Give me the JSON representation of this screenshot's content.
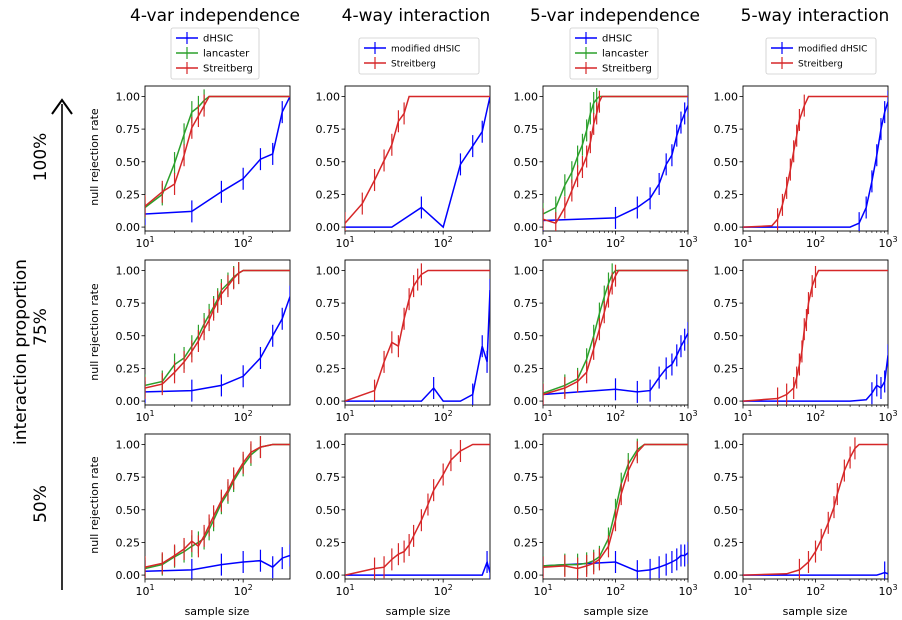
{
  "figure": {
    "column_titles": [
      "4-var independence",
      "4-way interaction",
      "5-var independence",
      "5-way interaction"
    ],
    "row_labels": [
      "100%",
      "75%",
      "50%"
    ],
    "side_label": "interaction proportion",
    "ylabel": "null rejection rate",
    "xlabel": "sample size"
  },
  "colors": {
    "dHSIC": "#0000ff",
    "lancaster": "#2ca02c",
    "Streitberg": "#d62728",
    "modified dHSIC": "#0000ff"
  },
  "chart_data": [
    {
      "type": "line",
      "panel": "4-var independence / 100%",
      "xscale": "log",
      "xlim": [
        10,
        300
      ],
      "ylim": [
        -0.03,
        1.08
      ],
      "series": [
        {
          "name": "dHSIC",
          "x": [
            10,
            30,
            60,
            100,
            150,
            200,
            250,
            300
          ],
          "y": [
            0.1,
            0.12,
            0.27,
            0.37,
            0.52,
            0.56,
            0.88,
            1.0
          ]
        },
        {
          "name": "lancaster",
          "x": [
            10,
            15,
            20,
            25,
            30,
            35,
            40,
            45,
            50,
            300
          ],
          "y": [
            0.15,
            0.25,
            0.49,
            0.71,
            0.88,
            0.92,
            0.97,
            1.0,
            1.0,
            1.0
          ]
        },
        {
          "name": "Streitberg",
          "x": [
            10,
            15,
            20,
            25,
            30,
            35,
            40,
            45,
            50,
            300
          ],
          "y": [
            0.16,
            0.27,
            0.33,
            0.55,
            0.76,
            0.85,
            0.93,
            1.0,
            1.0,
            1.0
          ]
        }
      ]
    },
    {
      "type": "line",
      "panel": "4-way interaction / 100%",
      "xscale": "log",
      "xlim": [
        10,
        300
      ],
      "ylim": [
        -0.03,
        1.08
      ],
      "series": [
        {
          "name": "modified dHSIC",
          "x": [
            10,
            30,
            60,
            100,
            150,
            200,
            250,
            300
          ],
          "y": [
            0.0,
            0.0,
            0.15,
            0.0,
            0.48,
            0.62,
            0.73,
            1.0
          ]
        },
        {
          "name": "Streitberg",
          "x": [
            10,
            15,
            20,
            25,
            30,
            35,
            40,
            45,
            50,
            300
          ],
          "y": [
            0.03,
            0.18,
            0.36,
            0.51,
            0.63,
            0.81,
            0.87,
            1.0,
            1.0,
            1.0
          ]
        }
      ]
    },
    {
      "type": "line",
      "panel": "5-var independence / 100%",
      "xscale": "log",
      "xlim": [
        10,
        1000
      ],
      "ylim": [
        -0.03,
        1.08
      ],
      "series": [
        {
          "name": "dHSIC",
          "x": [
            10,
            100,
            200,
            300,
            400,
            500,
            600,
            700,
            800,
            900,
            1000
          ],
          "y": [
            0.05,
            0.07,
            0.15,
            0.22,
            0.33,
            0.48,
            0.55,
            0.7,
            0.8,
            0.87,
            0.93
          ]
        },
        {
          "name": "lancaster",
          "x": [
            10,
            15,
            20,
            25,
            30,
            35,
            40,
            45,
            50,
            55,
            60,
            1000
          ],
          "y": [
            0.1,
            0.15,
            0.32,
            0.42,
            0.54,
            0.63,
            0.74,
            0.87,
            0.95,
            0.98,
            1.0,
            1.0
          ]
        },
        {
          "name": "Streitberg",
          "x": [
            10,
            15,
            20,
            25,
            30,
            35,
            40,
            45,
            50,
            55,
            60,
            65,
            70,
            1000
          ],
          "y": [
            0.06,
            0.03,
            0.15,
            0.28,
            0.39,
            0.46,
            0.54,
            0.65,
            0.79,
            0.87,
            0.96,
            1.0,
            1.0,
            1.0
          ]
        }
      ]
    },
    {
      "type": "line",
      "panel": "5-way interaction / 100%",
      "xscale": "log",
      "xlim": [
        10,
        1000
      ],
      "ylim": [
        -0.03,
        1.08
      ],
      "series": [
        {
          "name": "modified dHSIC",
          "x": [
            10,
            300,
            400,
            500,
            600,
            700,
            800,
            900,
            1000
          ],
          "y": [
            0.0,
            0.0,
            0.03,
            0.15,
            0.35,
            0.55,
            0.75,
            0.88,
            0.96
          ]
        },
        {
          "name": "Streitberg",
          "x": [
            10,
            25,
            30,
            35,
            40,
            45,
            50,
            55,
            60,
            70,
            80,
            1000
          ],
          "y": [
            0.0,
            0.01,
            0.06,
            0.17,
            0.3,
            0.44,
            0.58,
            0.7,
            0.82,
            0.93,
            1.0,
            1.0
          ]
        }
      ]
    },
    {
      "type": "line",
      "panel": "4-var independence / 75%",
      "xscale": "log",
      "xlim": [
        10,
        300
      ],
      "ylim": [
        -0.03,
        1.08
      ],
      "series": [
        {
          "name": "dHSIC",
          "x": [
            10,
            30,
            60,
            100,
            150,
            200,
            250,
            300
          ],
          "y": [
            0.07,
            0.08,
            0.12,
            0.19,
            0.33,
            0.5,
            0.63,
            0.8
          ]
        },
        {
          "name": "lancaster",
          "x": [
            10,
            15,
            20,
            25,
            30,
            35,
            40,
            45,
            50,
            55,
            60,
            70,
            80,
            90,
            100,
            300
          ],
          "y": [
            0.12,
            0.15,
            0.28,
            0.33,
            0.42,
            0.5,
            0.59,
            0.66,
            0.72,
            0.78,
            0.85,
            0.9,
            0.95,
            0.98,
            1.0,
            1.0
          ]
        },
        {
          "name": "Streitberg",
          "x": [
            10,
            15,
            20,
            25,
            30,
            35,
            40,
            45,
            50,
            55,
            60,
            70,
            80,
            90,
            100,
            300
          ],
          "y": [
            0.1,
            0.13,
            0.22,
            0.3,
            0.38,
            0.46,
            0.55,
            0.62,
            0.7,
            0.76,
            0.82,
            0.88,
            0.94,
            0.98,
            1.0,
            1.0
          ]
        }
      ]
    },
    {
      "type": "line",
      "panel": "4-way interaction / 75%",
      "xscale": "log",
      "xlim": [
        10,
        300
      ],
      "ylim": [
        -0.03,
        1.08
      ],
      "series": [
        {
          "name": "modified dHSIC",
          "x": [
            10,
            60,
            80,
            100,
            150,
            200,
            250,
            280,
            300
          ],
          "y": [
            0.0,
            0.0,
            0.1,
            0.0,
            0.0,
            0.05,
            0.42,
            0.3,
            0.85
          ]
        },
        {
          "name": "Streitberg",
          "x": [
            10,
            20,
            25,
            30,
            35,
            40,
            45,
            50,
            55,
            60,
            70,
            80,
            300
          ],
          "y": [
            0.0,
            0.08,
            0.3,
            0.45,
            0.42,
            0.63,
            0.78,
            0.88,
            0.93,
            0.97,
            1.0,
            1.0,
            1.0
          ]
        }
      ]
    },
    {
      "type": "line",
      "panel": "5-var independence / 75%",
      "xscale": "log",
      "xlim": [
        10,
        1000
      ],
      "ylim": [
        -0.03,
        1.08
      ],
      "series": [
        {
          "name": "dHSIC",
          "x": [
            10,
            100,
            200,
            300,
            400,
            500,
            600,
            700,
            800,
            900,
            1000
          ],
          "y": [
            0.05,
            0.09,
            0.07,
            0.08,
            0.18,
            0.25,
            0.28,
            0.35,
            0.42,
            0.47,
            0.52
          ]
        },
        {
          "name": "lancaster",
          "x": [
            10,
            20,
            30,
            40,
            50,
            60,
            70,
            80,
            90,
            100,
            1000
          ],
          "y": [
            0.06,
            0.12,
            0.17,
            0.32,
            0.5,
            0.67,
            0.8,
            0.9,
            0.97,
            1.0,
            1.0
          ]
        },
        {
          "name": "Streitberg",
          "x": [
            10,
            20,
            30,
            40,
            50,
            60,
            70,
            80,
            90,
            100,
            110,
            1000
          ],
          "y": [
            0.05,
            0.1,
            0.15,
            0.22,
            0.4,
            0.55,
            0.68,
            0.8,
            0.9,
            0.96,
            1.0,
            1.0
          ]
        }
      ]
    },
    {
      "type": "line",
      "panel": "5-way interaction / 75%",
      "xscale": "log",
      "xlim": [
        10,
        1000
      ],
      "ylim": [
        -0.03,
        1.08
      ],
      "series": [
        {
          "name": "modified dHSIC",
          "x": [
            10,
            300,
            500,
            600,
            700,
            800,
            900,
            1000
          ],
          "y": [
            0.0,
            0.0,
            0.01,
            0.06,
            0.12,
            0.1,
            0.15,
            0.35
          ]
        },
        {
          "name": "Streitberg",
          "x": [
            10,
            30,
            40,
            50,
            55,
            60,
            65,
            70,
            75,
            80,
            90,
            100,
            110,
            120,
            1000
          ],
          "y": [
            0.0,
            0.02,
            0.05,
            0.1,
            0.18,
            0.28,
            0.38,
            0.55,
            0.62,
            0.75,
            0.88,
            0.95,
            1.0,
            1.0,
            1.0
          ]
        }
      ]
    },
    {
      "type": "line",
      "panel": "4-var independence / 50%",
      "xscale": "log",
      "xlim": [
        10,
        300
      ],
      "ylim": [
        -0.03,
        1.08
      ],
      "series": [
        {
          "name": "dHSIC",
          "x": [
            10,
            30,
            60,
            100,
            150,
            200,
            250,
            300
          ],
          "y": [
            0.03,
            0.04,
            0.08,
            0.1,
            0.11,
            0.06,
            0.13,
            0.15
          ]
        },
        {
          "name": "lancaster",
          "x": [
            10,
            15,
            20,
            25,
            30,
            35,
            40,
            45,
            50,
            60,
            70,
            80,
            100,
            120,
            150,
            200,
            300
          ],
          "y": [
            0.05,
            0.08,
            0.14,
            0.18,
            0.22,
            0.25,
            0.28,
            0.35,
            0.42,
            0.55,
            0.63,
            0.72,
            0.84,
            0.92,
            0.98,
            1.0,
            1.0
          ]
        },
        {
          "name": "Streitberg",
          "x": [
            10,
            15,
            20,
            25,
            30,
            35,
            40,
            45,
            50,
            60,
            70,
            80,
            100,
            120,
            150,
            200,
            300
          ],
          "y": [
            0.06,
            0.09,
            0.15,
            0.2,
            0.26,
            0.22,
            0.3,
            0.38,
            0.45,
            0.57,
            0.65,
            0.74,
            0.86,
            0.94,
            0.98,
            1.0,
            1.0
          ]
        }
      ]
    },
    {
      "type": "line",
      "panel": "4-way interaction / 50%",
      "xscale": "log",
      "xlim": [
        10,
        300
      ],
      "ylim": [
        -0.03,
        1.08
      ],
      "series": [
        {
          "name": "modified dHSIC",
          "x": [
            10,
            250,
            280,
            300
          ],
          "y": [
            0.0,
            0.0,
            0.1,
            0.02
          ]
        },
        {
          "name": "Streitberg",
          "x": [
            10,
            20,
            25,
            30,
            35,
            40,
            45,
            50,
            60,
            70,
            80,
            100,
            120,
            150,
            200,
            300
          ],
          "y": [
            0.0,
            0.05,
            0.06,
            0.12,
            0.16,
            0.18,
            0.23,
            0.3,
            0.42,
            0.54,
            0.65,
            0.77,
            0.88,
            0.95,
            1.0,
            1.0
          ]
        }
      ]
    },
    {
      "type": "line",
      "panel": "5-var independence / 50%",
      "xscale": "log",
      "xlim": [
        10,
        1000
      ],
      "ylim": [
        -0.03,
        1.08
      ],
      "series": [
        {
          "name": "dHSIC",
          "x": [
            10,
            100,
            200,
            300,
            400,
            500,
            600,
            700,
            800,
            900,
            1000
          ],
          "y": [
            0.07,
            0.1,
            0.03,
            0.04,
            0.06,
            0.08,
            0.1,
            0.12,
            0.15,
            0.15,
            0.17
          ]
        },
        {
          "name": "lancaster",
          "x": [
            10,
            20,
            30,
            40,
            50,
            60,
            80,
            100,
            120,
            150,
            200,
            250,
            300,
            1000
          ],
          "y": [
            0.07,
            0.08,
            0.08,
            0.09,
            0.11,
            0.14,
            0.28,
            0.5,
            0.7,
            0.85,
            0.96,
            1.0,
            1.0,
            1.0
          ]
        },
        {
          "name": "Streitberg",
          "x": [
            10,
            20,
            30,
            40,
            50,
            60,
            80,
            100,
            120,
            150,
            200,
            250,
            300,
            1000
          ],
          "y": [
            0.06,
            0.07,
            0.05,
            0.07,
            0.09,
            0.12,
            0.22,
            0.42,
            0.62,
            0.8,
            0.94,
            1.0,
            1.0,
            1.0
          ]
        }
      ]
    },
    {
      "type": "line",
      "panel": "5-way interaction / 50%",
      "xscale": "log",
      "xlim": [
        10,
        1000
      ],
      "ylim": [
        -0.03,
        1.08
      ],
      "series": [
        {
          "name": "modified dHSIC",
          "x": [
            10,
            700,
            800,
            900,
            1000
          ],
          "y": [
            0.0,
            0.0,
            0.01,
            0.02,
            0.01
          ]
        },
        {
          "name": "Streitberg",
          "x": [
            10,
            40,
            60,
            80,
            100,
            120,
            150,
            180,
            200,
            250,
            300,
            350,
            400,
            1000
          ],
          "y": [
            0.0,
            0.01,
            0.04,
            0.1,
            0.18,
            0.27,
            0.4,
            0.52,
            0.62,
            0.8,
            0.9,
            0.97,
            1.0,
            1.0
          ]
        }
      ]
    }
  ]
}
